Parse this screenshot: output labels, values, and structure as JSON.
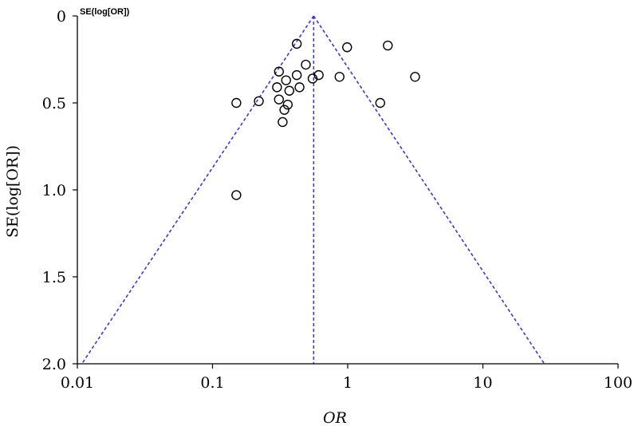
{
  "chart_data": {
    "type": "scatter",
    "title": "",
    "xlabel": "OR",
    "ylabel": "SE(log[OR])",
    "corner_label": "SE(log[OR])",
    "x_scale": "log",
    "xlim": [
      0.01,
      100
    ],
    "ylim": [
      0,
      2.0
    ],
    "y_inverted": true,
    "x_ticks": [
      0.01,
      0.1,
      1,
      10,
      100
    ],
    "x_tick_labels": [
      "0.01",
      "0.1",
      "1",
      "10",
      "100"
    ],
    "y_ticks": [
      0,
      0.5,
      1.0,
      1.5,
      2.0
    ],
    "y_tick_labels": [
      "0",
      "0.5",
      "1.0",
      "1.5",
      "2.0"
    ],
    "grid": false,
    "pooled_or": 0.56,
    "funnel": {
      "apex_se": 0,
      "base_se": 2.0,
      "left_x": 0.0108,
      "right_x": 28.5
    },
    "points": [
      {
        "x": 0.42,
        "y": 0.16
      },
      {
        "x": 0.99,
        "y": 0.18
      },
      {
        "x": 1.98,
        "y": 0.17
      },
      {
        "x": 0.49,
        "y": 0.28
      },
      {
        "x": 0.31,
        "y": 0.32
      },
      {
        "x": 0.42,
        "y": 0.34
      },
      {
        "x": 0.35,
        "y": 0.37
      },
      {
        "x": 0.55,
        "y": 0.36
      },
      {
        "x": 0.61,
        "y": 0.34
      },
      {
        "x": 0.87,
        "y": 0.35
      },
      {
        "x": 3.15,
        "y": 0.35
      },
      {
        "x": 0.3,
        "y": 0.41
      },
      {
        "x": 0.37,
        "y": 0.43
      },
      {
        "x": 0.44,
        "y": 0.41
      },
      {
        "x": 0.31,
        "y": 0.48
      },
      {
        "x": 0.36,
        "y": 0.51
      },
      {
        "x": 0.34,
        "y": 0.54
      },
      {
        "x": 0.15,
        "y": 0.5
      },
      {
        "x": 0.22,
        "y": 0.49
      },
      {
        "x": 1.74,
        "y": 0.5
      },
      {
        "x": 0.33,
        "y": 0.61
      },
      {
        "x": 0.15,
        "y": 1.03
      }
    ]
  }
}
